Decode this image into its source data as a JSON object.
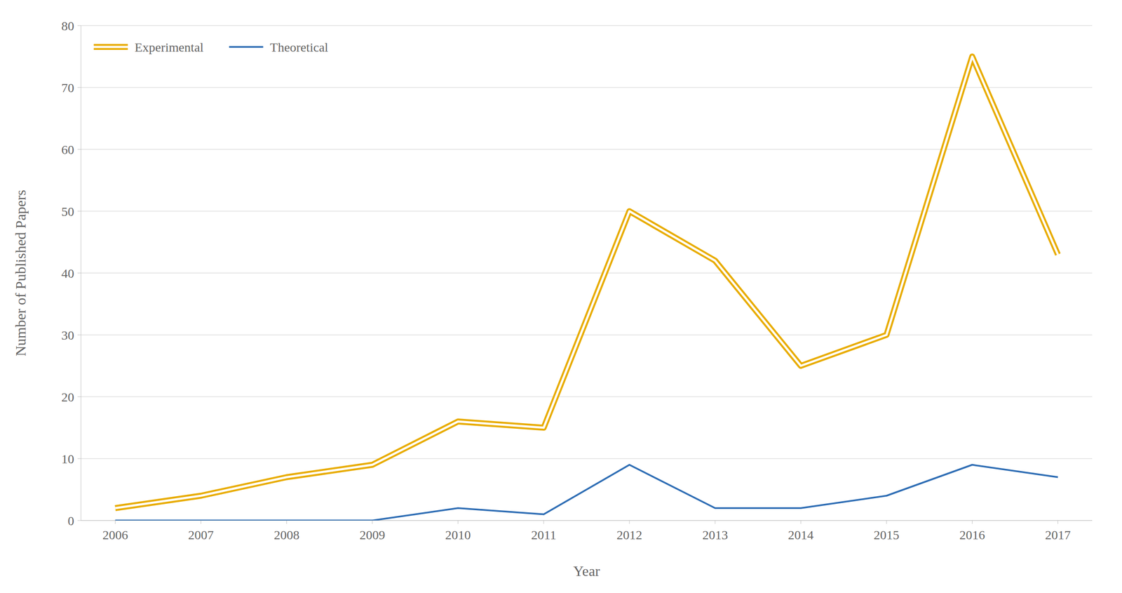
{
  "chart_data": {
    "type": "line",
    "x": [
      2006,
      2007,
      2008,
      2009,
      2010,
      2011,
      2012,
      2013,
      2014,
      2015,
      2016,
      2017
    ],
    "series": [
      {
        "name": "Experimental",
        "color": "#E8AC00",
        "values": [
          2,
          4,
          7,
          9,
          16,
          15,
          50,
          42,
          25,
          30,
          75,
          43
        ]
      },
      {
        "name": "Theoretical",
        "color": "#2E6DB4",
        "values": [
          0,
          0,
          0,
          0,
          2,
          1,
          9,
          2,
          2,
          4,
          9,
          7
        ]
      }
    ],
    "xlabel": "Year",
    "ylabel": "Number of Published Papers",
    "xlim": [
      2005.6,
      2017.4
    ],
    "xticks": [
      2006,
      2007,
      2008,
      2009,
      2010,
      2011,
      2012,
      2013,
      2014,
      2015,
      2016,
      2017
    ],
    "ylim": [
      0,
      80
    ],
    "yticks": [
      0,
      10,
      20,
      30,
      40,
      50,
      60,
      70,
      80
    ],
    "grid": true,
    "legend": "upper left"
  }
}
